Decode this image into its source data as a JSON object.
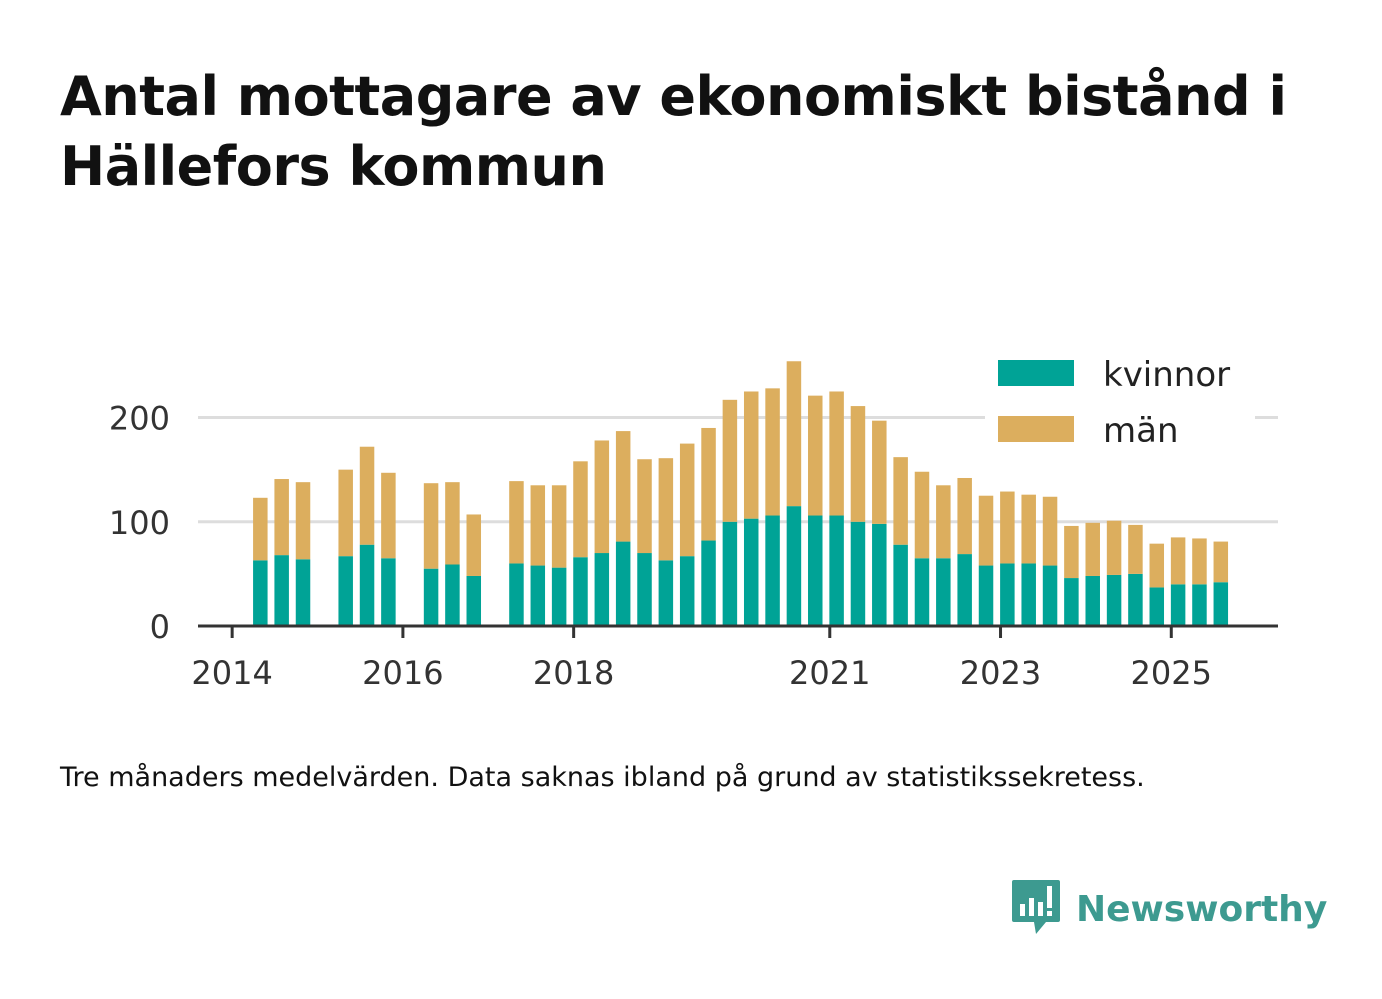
{
  "title": "Antal mottagare av ekonomiskt bistånd i Hällefors kommun",
  "footnote": "Tre månaders medelvärden. Data saknas ibland på grund av statistikssekretess.",
  "brand": {
    "name": "Newsworthy",
    "icon": "newsworthy-logo-icon",
    "color": "#3d9a90"
  },
  "colors": {
    "kvinnor": "#00a396",
    "man": "#dcae5e",
    "grid": "#dddddd",
    "axis": "#333333"
  },
  "chart_data": {
    "type": "bar",
    "stacked": true,
    "title": "Antal mottagare av ekonomiskt bistånd i Hällefors kommun",
    "xlabel": "",
    "ylabel": "",
    "ylim": [
      0,
      260
    ],
    "xlim": [
      2013.6,
      2026.25
    ],
    "y_ticks": [
      0,
      100,
      200
    ],
    "x_ticks": [
      {
        "label": "2014",
        "value": 2014.0
      },
      {
        "label": "2016",
        "value": 2016.0
      },
      {
        "label": "2018",
        "value": 2018.0
      },
      {
        "label": "2021",
        "value": 2021.0
      },
      {
        "label": "2023",
        "value": 2023.0
      },
      {
        "label": "2025",
        "value": 2025.0
      }
    ],
    "legend": {
      "position": "top-right",
      "entries": [
        "kvinnor",
        "män"
      ]
    },
    "grid": true,
    "x": [
      2014.33,
      2014.58,
      2014.83,
      2015.33,
      2015.58,
      2015.83,
      2016.33,
      2016.58,
      2016.83,
      2017.33,
      2017.58,
      2017.83,
      2018.08,
      2018.33,
      2018.58,
      2018.83,
      2019.08,
      2019.33,
      2019.58,
      2019.83,
      2020.08,
      2020.33,
      2020.58,
      2020.83,
      2021.08,
      2021.33,
      2021.58,
      2021.83,
      2022.08,
      2022.33,
      2022.58,
      2022.83,
      2023.08,
      2023.33,
      2023.58,
      2023.83,
      2024.08,
      2024.33,
      2024.58,
      2024.83,
      2025.08,
      2025.33,
      2025.58
    ],
    "series": [
      {
        "name": "kvinnor",
        "values": [
          63,
          68,
          64,
          67,
          78,
          65,
          55,
          59,
          48,
          60,
          58,
          56,
          66,
          70,
          81,
          70,
          63,
          67,
          82,
          100,
          103,
          106,
          115,
          106,
          106,
          100,
          98,
          78,
          65,
          65,
          69,
          58,
          60,
          60,
          58,
          46,
          48,
          49,
          50,
          37,
          40,
          40,
          42
        ]
      },
      {
        "name": "män",
        "values": [
          60,
          73,
          74,
          83,
          94,
          82,
          82,
          79,
          59,
          79,
          77,
          79,
          92,
          108,
          106,
          90,
          98,
          108,
          108,
          117,
          122,
          122,
          139,
          115,
          119,
          111,
          99,
          84,
          83,
          70,
          73,
          67,
          69,
          66,
          66,
          50,
          51,
          52,
          47,
          42,
          45,
          44,
          39
        ]
      }
    ]
  }
}
